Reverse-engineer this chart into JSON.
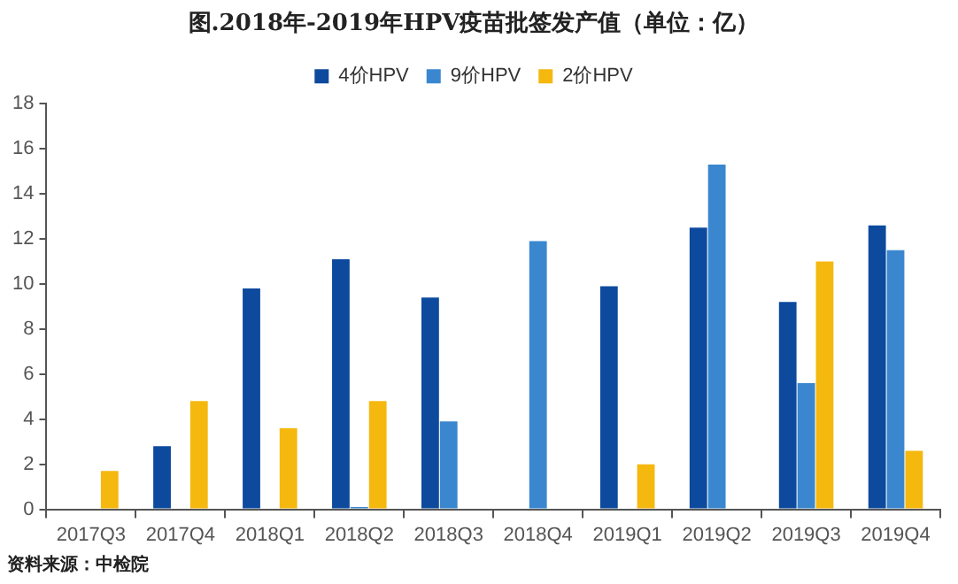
{
  "chart_data": {
    "type": "bar",
    "title": "图.2018年-2019年HPV疫苗批签发产值（单位：亿）",
    "categories": [
      "2017Q3",
      "2017Q4",
      "2018Q1",
      "2018Q2",
      "2018Q3",
      "2018Q4",
      "2019Q1",
      "2019Q2",
      "2019Q3",
      "2019Q4"
    ],
    "series": [
      {
        "name": "4价HPV",
        "color": "#0d4a9e",
        "values": [
          null,
          2.8,
          9.8,
          11.1,
          9.4,
          null,
          9.9,
          12.5,
          9.2,
          12.6
        ]
      },
      {
        "name": "9价HPV",
        "color": "#3a87cf",
        "values": [
          null,
          null,
          null,
          0.1,
          3.9,
          11.9,
          null,
          15.3,
          5.6,
          11.5
        ]
      },
      {
        "name": "2价HPV",
        "color": "#f5b80f",
        "values": [
          1.7,
          4.8,
          3.6,
          4.8,
          null,
          null,
          2.0,
          null,
          11.0,
          2.6
        ]
      }
    ],
    "ylim": [
      0,
      18
    ],
    "yticks": [
      0,
      2,
      4,
      6,
      8,
      10,
      12,
      14,
      16,
      18
    ],
    "grid": false,
    "legend": "top",
    "annotations": [
      "资料来源：中检院"
    ]
  }
}
